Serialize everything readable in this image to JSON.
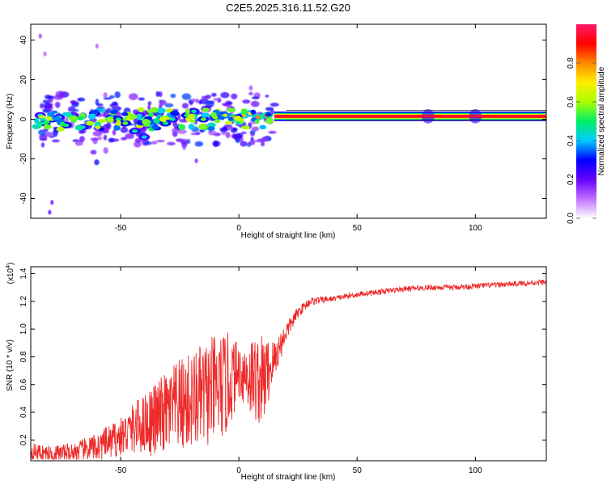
{
  "page_title": "C2E5.2025.316.11.52.G20",
  "chart_data": [
    {
      "type": "heatmap",
      "title": "C2E5.2025.316.11.52.G20",
      "xlabel": "Height of straight line (km)",
      "ylabel": "Frequency (Hz)",
      "xlim": [
        -88,
        130
      ],
      "ylim": [
        -50,
        48
      ],
      "x_ticks": [
        -50,
        0,
        50,
        100
      ],
      "x_tick_labels": [
        "-50",
        "0",
        "50",
        "100"
      ],
      "y_ticks": [
        -40,
        -20,
        0,
        20,
        40
      ],
      "y_tick_labels": [
        "-40",
        "-20",
        "0",
        "20",
        "40"
      ],
      "colorbar": {
        "label": "Normalized spectral amplitude",
        "range": [
          0,
          1
        ],
        "ticks": [
          0.0,
          0.2,
          0.4,
          0.6,
          0.8
        ],
        "tick_labels": [
          "0.0",
          "0.2",
          "0.4",
          "0.6",
          "0.8"
        ],
        "colormap": [
          "#ffffff",
          "#c070ff",
          "#6600ff",
          "#0000ff",
          "#00ccff",
          "#00ee66",
          "#aaff00",
          "#ffee00",
          "#ff8800",
          "#ff0000",
          "#ff1a66"
        ]
      },
      "band": {
        "description": "continuous narrow band from ~15 km to 130 km",
        "x_range": [
          15,
          130
        ],
        "freq_center": 1.5,
        "freq_halfwidth": 1.5,
        "amplitude": 0.9
      },
      "blobs": [
        {
          "x": -84,
          "f": 2,
          "v": 0.4
        },
        {
          "x": -82,
          "f": -2,
          "v": 0.5
        },
        {
          "x": -79,
          "f": 0,
          "v": 0.55
        },
        {
          "x": -76,
          "f": 1,
          "v": 0.45
        },
        {
          "x": -73,
          "f": -3,
          "v": 0.5
        },
        {
          "x": -70,
          "f": 2,
          "v": 0.35
        },
        {
          "x": -66,
          "f": -4,
          "v": 0.45
        },
        {
          "x": -61,
          "f": 3,
          "v": 0.5
        },
        {
          "x": -58,
          "f": -5,
          "v": 0.3
        },
        {
          "x": -54,
          "f": 1,
          "v": 0.45
        },
        {
          "x": -51,
          "f": 0,
          "v": 0.5
        },
        {
          "x": -48,
          "f": -2,
          "v": 0.55
        },
        {
          "x": -44,
          "f": -6,
          "v": 0.45
        },
        {
          "x": -42,
          "f": 2,
          "v": 0.4
        },
        {
          "x": -40,
          "f": -9,
          "v": 0.4
        },
        {
          "x": -37,
          "f": -3,
          "v": 0.4
        },
        {
          "x": -34,
          "f": 3,
          "v": 0.35
        },
        {
          "x": -31,
          "f": -2,
          "v": 0.5
        },
        {
          "x": -28,
          "f": 0,
          "v": 0.45
        },
        {
          "x": -25,
          "f": -4,
          "v": 0.3
        },
        {
          "x": -22,
          "f": 2,
          "v": 0.5
        },
        {
          "x": -19,
          "f": 4,
          "v": 0.45
        },
        {
          "x": -15,
          "f": 0,
          "v": 0.55
        },
        {
          "x": -10,
          "f": 1,
          "v": 0.6
        },
        {
          "x": -6,
          "f": 2,
          "v": 0.65
        },
        {
          "x": -2,
          "f": 1,
          "v": 0.8
        },
        {
          "x": 2,
          "f": 2,
          "v": 0.75
        },
        {
          "x": 5,
          "f": 3,
          "v": 0.7
        },
        {
          "x": 8,
          "f": 1,
          "v": 0.8
        },
        {
          "x": 12,
          "f": 2,
          "v": 0.85
        }
      ],
      "color_blobs": [
        {
          "x": -63,
          "f": -2,
          "v": 0.6
        },
        {
          "x": -55,
          "f": 0,
          "v": 0.55
        },
        {
          "x": -46,
          "f": 1,
          "v": 0.6
        },
        {
          "x": -38,
          "f": -1,
          "v": 0.55
        },
        {
          "x": -30,
          "f": 1,
          "v": 0.6
        },
        {
          "x": -21,
          "f": 0,
          "v": 0.65
        }
      ]
    },
    {
      "type": "line",
      "xlabel": "Height of straight line (km)",
      "ylabel": "SNR (10 * v/v)",
      "scale_label": "(x10",
      "scale_exponent": "4",
      "scale_suffix": ")",
      "xlim": [
        -88,
        130
      ],
      "ylim": [
        0.05,
        1.45
      ],
      "x_ticks": [
        -50,
        0,
        50,
        100
      ],
      "x_tick_labels": [
        "-50",
        "0",
        "50",
        "100"
      ],
      "y_ticks": [
        0.2,
        0.4,
        0.6,
        0.8,
        1.0,
        1.2,
        1.4
      ],
      "y_tick_labels": [
        "0.2",
        "0.4",
        "0.6",
        "0.8",
        "1.0",
        "1.2",
        "1.4"
      ],
      "series": [
        {
          "name": "SNR",
          "color": "#ee2a2a",
          "x": [
            -88,
            -80,
            -70,
            -60,
            -50,
            -45,
            -40,
            -35,
            -30,
            -25,
            -20,
            -15,
            -10,
            -5,
            0,
            5,
            10,
            15,
            20,
            25,
            30,
            40,
            50,
            60,
            70,
            80,
            90,
            100,
            110,
            120,
            130
          ],
          "base": [
            0.12,
            0.1,
            0.11,
            0.15,
            0.22,
            0.28,
            0.32,
            0.35,
            0.4,
            0.45,
            0.48,
            0.52,
            0.56,
            0.6,
            0.7,
            0.66,
            0.62,
            0.78,
            0.98,
            1.12,
            1.2,
            1.22,
            1.25,
            1.27,
            1.29,
            1.3,
            1.3,
            1.31,
            1.32,
            1.33,
            1.34
          ],
          "noise": [
            0.06,
            0.06,
            0.07,
            0.1,
            0.14,
            0.18,
            0.22,
            0.28,
            0.3,
            0.34,
            0.36,
            0.38,
            0.4,
            0.38,
            0.2,
            0.3,
            0.34,
            0.15,
            0.07,
            0.04,
            0.03,
            0.02,
            0.02,
            0.02,
            0.02,
            0.02,
            0.02,
            0.02,
            0.02,
            0.02,
            0.02
          ]
        }
      ]
    }
  ]
}
